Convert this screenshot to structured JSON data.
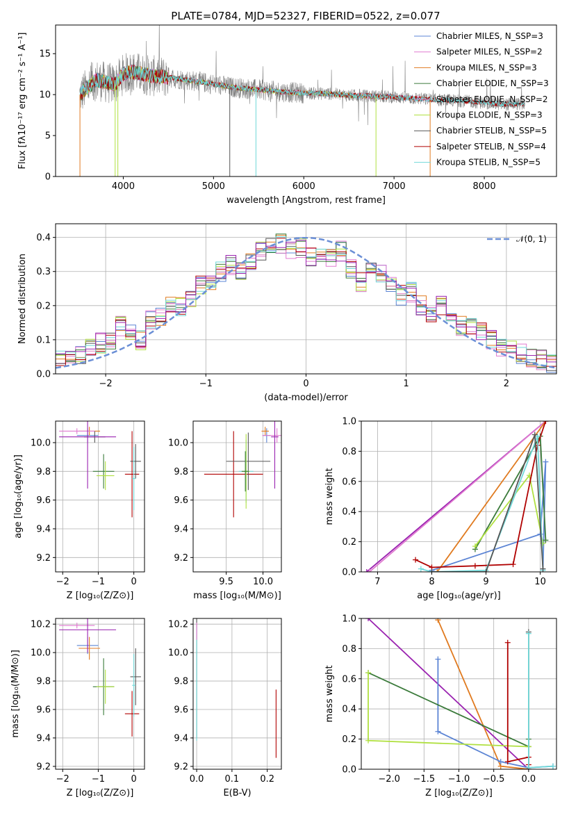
{
  "title": "PLATE=0784, MJD=52327, FIBERID=0522, z=0.077",
  "colors": {
    "chabrier_miles": "#5b84d4",
    "salpeter_miles": "#e07ad0",
    "kroupa_miles": "#e07a1f",
    "chabrier_elodie": "#3a7a3a",
    "salpeter_elodie": "#e080c0",
    "kroupa_elodie": "#b0e040",
    "chabrier_stelib": "#555555",
    "salpeter_stelib": "#b00000",
    "kroupa_stelib": "#70d8d8",
    "purple": "#9a22b0",
    "data": "#808080",
    "gauss": "#6b8fd6"
  },
  "chart_data": [
    {
      "type": "line",
      "panel": "spectrum",
      "xlabel": "wavelength [Angstrom, rest frame]",
      "ylabel": "Flux [fλ10⁻¹⁷ erg cm⁻² s⁻¹ A⁻¹]",
      "xlim": [
        3250,
        8800
      ],
      "ylim": [
        0,
        18.5
      ],
      "xticks": [
        "4000",
        "5000",
        "6000",
        "7000",
        "8000"
      ],
      "yticks": [
        "0",
        "5",
        "10",
        "15"
      ],
      "legend": [
        "Chabrier MILES, N_SSP=3",
        "Salpeter MILES, N_SSP=2",
        "Kroupa MILES, N_SSP=3",
        "Chabrier ELODIE, N_SSP=3",
        "Salpeter ELODIE, N_SSP=2",
        "Kroupa ELODIE, N_SSP=3",
        "Chabrier STELIB, N_SSP=5",
        "Salpeter STELIB, N_SSP=4",
        "Kroupa STELIB, N_SSP=5"
      ],
      "legend_placement": "upper-right",
      "continuum": [
        [
          3520,
          10.0
        ],
        [
          3700,
          11.8
        ],
        [
          3900,
          11.2
        ],
        [
          4000,
          12.5
        ],
        [
          4100,
          12.8
        ],
        [
          4300,
          12.3
        ],
        [
          4500,
          12.1
        ],
        [
          4700,
          11.8
        ],
        [
          5000,
          11.3
        ],
        [
          5200,
          10.9
        ],
        [
          5500,
          10.6
        ],
        [
          5800,
          10.3
        ],
        [
          6000,
          10.2
        ],
        [
          6300,
          10.1
        ],
        [
          6500,
          9.9
        ],
        [
          6800,
          9.8
        ],
        [
          7000,
          9.7
        ],
        [
          7400,
          9.4
        ],
        [
          7800,
          9.2
        ],
        [
          8200,
          8.8
        ],
        [
          8450,
          8.9
        ]
      ]
    },
    {
      "type": "bar",
      "panel": "residuals",
      "xlabel": "(data-model)/error",
      "ylabel": "Normed distribution",
      "xlim": [
        -2.5,
        2.5
      ],
      "ylim": [
        0,
        0.44
      ],
      "xticks": [
        "−2",
        "−1",
        "0",
        "1",
        "2"
      ],
      "yticks": [
        "0.0",
        "0.1",
        "0.2",
        "0.3",
        "0.4"
      ],
      "legend": [
        "𝒩(0, 1)"
      ],
      "histogram_centers": [
        -2.45,
        -2.35,
        -2.25,
        -2.15,
        -2.05,
        -1.95,
        -1.85,
        -1.75,
        -1.65,
        -1.55,
        -1.45,
        -1.35,
        -1.25,
        -1.15,
        -1.05,
        -0.95,
        -0.85,
        -0.75,
        -0.65,
        -0.55,
        -0.45,
        -0.35,
        -0.25,
        -0.15,
        -0.05,
        0.05,
        0.15,
        0.25,
        0.35,
        0.45,
        0.55,
        0.65,
        0.75,
        0.85,
        0.95,
        1.05,
        1.15,
        1.25,
        1.35,
        1.45,
        1.55,
        1.65,
        1.75,
        1.85,
        1.95,
        2.05,
        2.15,
        2.25,
        2.35,
        2.45
      ],
      "histogram_mean": [
        0.04,
        0.05,
        0.06,
        0.08,
        0.09,
        0.1,
        0.14,
        0.12,
        0.1,
        0.16,
        0.17,
        0.2,
        0.2,
        0.22,
        0.26,
        0.27,
        0.3,
        0.32,
        0.3,
        0.33,
        0.36,
        0.37,
        0.38,
        0.36,
        0.37,
        0.34,
        0.35,
        0.34,
        0.36,
        0.31,
        0.27,
        0.3,
        0.29,
        0.26,
        0.23,
        0.24,
        0.2,
        0.18,
        0.2,
        0.15,
        0.14,
        0.14,
        0.12,
        0.1,
        0.08,
        0.07,
        0.06,
        0.05,
        0.04,
        0.03
      ]
    },
    {
      "type": "scatter",
      "panel": "age-vs-Z",
      "xlabel": "Z [log₁₀(Z/Z⊙)]",
      "ylabel": "age  [log₁₀(age/yr)]",
      "xlim": [
        -2.2,
        0.3
      ],
      "ylim": [
        9.1,
        10.15
      ],
      "xticks": [
        "−2",
        "−1",
        "0"
      ],
      "yticks": [
        "9.2",
        "9.4",
        "9.6",
        "9.8",
        "10.0"
      ],
      "points": [
        {
          "x": -1.3,
          "y": 10.05,
          "ex": 0.3,
          "ey": 0.05,
          "c": "chabrier_miles"
        },
        {
          "x": -1.25,
          "y": 10.08,
          "ex": 0.3,
          "ey": 0.03,
          "c": "kroupa_miles"
        },
        {
          "x": -1.1,
          "y": 10.04,
          "ex": 0.3,
          "ey": 0.04,
          "c": "chabrier_stelib"
        },
        {
          "x": -1.6,
          "y": 10.08,
          "ex": 0.5,
          "ey": 0.02,
          "c": "salpeter_miles"
        },
        {
          "x": -1.3,
          "y": 10.04,
          "ex": 0.8,
          "ey": 0.36,
          "c": "purple"
        },
        {
          "x": -0.85,
          "y": 9.8,
          "ex": 0.3,
          "ey": 0.12,
          "c": "chabrier_elodie"
        },
        {
          "x": -0.8,
          "y": 9.77,
          "ex": 0.25,
          "ey": 0.1,
          "c": "kroupa_elodie"
        },
        {
          "x": -0.05,
          "y": 9.78,
          "ex": 0.2,
          "ey": 0.3,
          "c": "salpeter_stelib"
        },
        {
          "x": 0.05,
          "y": 9.87,
          "ex": 0.15,
          "ey": 0.12,
          "c": "chabrier_stelib"
        },
        {
          "x": 0.0,
          "y": 9.75,
          "ex": 0.05,
          "ey": 0.22,
          "c": "kroupa_stelib"
        }
      ]
    },
    {
      "type": "scatter",
      "panel": "age-vs-mass",
      "xlabel": "mass [log₁₀(M/M⊙)]",
      "ylabel": "",
      "xlim": [
        9.05,
        10.25
      ],
      "ylim": [
        9.1,
        10.15
      ],
      "xticks": [
        "9.5",
        "10.0"
      ],
      "yticks": [
        "9.2",
        "9.4",
        "9.6",
        "9.8",
        "10.0"
      ],
      "points": [
        {
          "x": 9.6,
          "y": 9.78,
          "ex": 0.4,
          "ey": 0.3,
          "c": "salpeter_stelib"
        },
        {
          "x": 9.8,
          "y": 9.87,
          "ex": 0.3,
          "ey": 0.2,
          "c": "chabrier_stelib"
        },
        {
          "x": 9.77,
          "y": 9.8,
          "ex": 0.1,
          "ey": 0.22,
          "c": "kroupa_stelib"
        },
        {
          "x": 9.77,
          "y": 9.8,
          "ex": 0.05,
          "ey": 0.26,
          "c": "kroupa_elodie"
        },
        {
          "x": 9.76,
          "y": 9.8,
          "ex": 0.05,
          "ey": 0.14,
          "c": "chabrier_elodie"
        },
        {
          "x": 10.05,
          "y": 10.05,
          "ex": 0.05,
          "ey": 0.05,
          "c": "chabrier_miles"
        },
        {
          "x": 10.03,
          "y": 10.08,
          "ex": 0.05,
          "ey": 0.03,
          "c": "kroupa_miles"
        },
        {
          "x": 10.19,
          "y": 10.05,
          "ex": 0.2,
          "ey": 0.05,
          "c": "salpeter_miles"
        },
        {
          "x": 10.16,
          "y": 10.04,
          "ex": 0.05,
          "ey": 0.36,
          "c": "purple"
        }
      ]
    },
    {
      "type": "line",
      "panel": "mass-weight-vs-age",
      "xlabel": "age  [log₁₀(age/yr)]",
      "ylabel": "mass weight",
      "xlim": [
        6.7,
        10.3
      ],
      "ylim": [
        0,
        1
      ],
      "xticks": [
        "7",
        "8",
        "9",
        "10"
      ],
      "yticks": [
        "0.0",
        "0.2",
        "0.4",
        "0.6",
        "0.8",
        "1.0"
      ],
      "series": [
        {
          "c": "purple",
          "x": [
            6.8,
            10.1
          ],
          "y": [
            0.0,
            1.0
          ]
        },
        {
          "c": "salpeter_miles",
          "x": [
            6.85,
            10.1
          ],
          "y": [
            0.0,
            1.0
          ]
        },
        {
          "c": "kroupa_miles",
          "x": [
            8.1,
            10.1
          ],
          "y": [
            0.0,
            1.0
          ]
        },
        {
          "c": "chabrier_miles",
          "x": [
            8.0,
            10.0,
            10.1,
            10.05
          ],
          "y": [
            0.01,
            0.25,
            0.73,
            0.02
          ]
        },
        {
          "c": "chabrier_elodie",
          "x": [
            8.8,
            10.0,
            10.1
          ],
          "y": [
            0.15,
            0.9,
            0.21
          ]
        },
        {
          "c": "kroupa_elodie",
          "x": [
            8.8,
            9.8,
            10.05
          ],
          "y": [
            0.17,
            0.64,
            0.19
          ]
        },
        {
          "c": "salpeter_stelib",
          "x": [
            7.7,
            8.0,
            8.8,
            9.5,
            9.95,
            10.1
          ],
          "y": [
            0.08,
            0.03,
            0.04,
            0.05,
            0.84,
            1.0
          ]
        },
        {
          "c": "kroupa_stelib",
          "x": [
            7.8,
            8.0,
            9.0,
            9.95,
            10.05
          ],
          "y": [
            0.02,
            0.0,
            0.01,
            0.9,
            0.01
          ]
        },
        {
          "c": "chabrier_stelib",
          "x": [
            8.0,
            9.0,
            9.9,
            10.05
          ],
          "y": [
            0.0,
            0.0,
            0.91,
            0.02
          ]
        }
      ]
    },
    {
      "type": "scatter",
      "panel": "mass-vs-Z",
      "xlabel": "Z [log₁₀(Z/Z⊙)]",
      "ylabel": "mass [log₁₀(M/M⊙)]",
      "xlim": [
        -2.2,
        0.3
      ],
      "ylim": [
        9.18,
        10.24
      ],
      "xticks": [
        "−2",
        "−1",
        "0"
      ],
      "yticks": [
        "9.2",
        "9.4",
        "9.6",
        "9.8",
        "10.0",
        "10.2"
      ],
      "points": [
        {
          "x": -1.3,
          "y": 10.05,
          "ex": 0.3,
          "ey": 0.06,
          "c": "chabrier_miles"
        },
        {
          "x": -1.25,
          "y": 10.03,
          "ex": 0.3,
          "ey": 0.08,
          "c": "kroupa_miles"
        },
        {
          "x": -1.6,
          "y": 10.19,
          "ex": 0.5,
          "ey": 0.02,
          "c": "salpeter_miles"
        },
        {
          "x": -1.3,
          "y": 10.16,
          "ex": 0.8,
          "ey": 0.16,
          "c": "purple"
        },
        {
          "x": -0.85,
          "y": 9.76,
          "ex": 0.3,
          "ey": 0.2,
          "c": "chabrier_elodie"
        },
        {
          "x": -0.8,
          "y": 9.76,
          "ex": 0.25,
          "ey": 0.12,
          "c": "kroupa_elodie"
        },
        {
          "x": -0.05,
          "y": 9.57,
          "ex": 0.2,
          "ey": 0.16,
          "c": "salpeter_stelib"
        },
        {
          "x": 0.05,
          "y": 9.83,
          "ex": 0.15,
          "ey": 0.2,
          "c": "chabrier_stelib"
        },
        {
          "x": 0.0,
          "y": 9.77,
          "ex": 0.05,
          "ey": 0.22,
          "c": "kroupa_stelib"
        }
      ]
    },
    {
      "type": "scatter",
      "panel": "mass-vs-EBV",
      "xlabel": "E(B-V)",
      "ylabel": "",
      "xlim": [
        -0.01,
        0.24
      ],
      "ylim": [
        9.18,
        10.24
      ],
      "xticks": [
        "0.0",
        "0.1",
        "0.2"
      ],
      "yticks": [
        "9.2",
        "9.4",
        "9.6",
        "9.8",
        "10.0",
        "10.2"
      ],
      "points": [
        {
          "x": 0.0,
          "y": 9.85,
          "ex": 0.0,
          "ey": 0.45,
          "c": "chabrier_stelib"
        },
        {
          "x": 0.0,
          "y": 9.78,
          "ex": 0.0,
          "ey": 0.4,
          "c": "kroupa_stelib"
        },
        {
          "x": 0.0,
          "y": 10.15,
          "ex": 0.0,
          "ey": 0.06,
          "c": "salpeter_miles"
        },
        {
          "x": 0.225,
          "y": 9.5,
          "ex": 0.0,
          "ey": 0.24,
          "c": "salpeter_stelib"
        }
      ]
    },
    {
      "type": "line",
      "panel": "mass-weight-vs-Z",
      "xlabel": "Z [log₁₀(Z/Z⊙)]",
      "ylabel": "mass weight",
      "xlim": [
        -2.4,
        0.4
      ],
      "ylim": [
        0,
        1
      ],
      "xticks": [
        "−2.0",
        "−1.5",
        "−1.0",
        "−0.5",
        "0.0"
      ],
      "yticks": [
        "0.0",
        "0.2",
        "0.4",
        "0.6",
        "0.8",
        "1.0"
      ],
      "series": [
        {
          "c": "purple",
          "x": [
            -2.3,
            0.0
          ],
          "y": [
            1.0,
            0.0
          ]
        },
        {
          "c": "kroupa_miles",
          "x": [
            -1.3,
            -0.4,
            0.0
          ],
          "y": [
            0.99,
            0.02,
            0.0
          ]
        },
        {
          "c": "chabrier_miles",
          "x": [
            -1.3,
            -1.3,
            -0.4,
            0.0,
            0.35
          ],
          "y": [
            0.73,
            0.25,
            0.05,
            0.01,
            0.02
          ]
        },
        {
          "c": "chabrier_elodie",
          "x": [
            -2.3,
            0.0,
            0.0
          ],
          "y": [
            0.64,
            0.15,
            0.2
          ]
        },
        {
          "c": "kroupa_elodie",
          "x": [
            -2.3,
            -2.3,
            0.0
          ],
          "y": [
            0.64,
            0.19,
            0.15
          ]
        },
        {
          "c": "salpeter_stelib",
          "x": [
            -0.3,
            -0.3,
            0.0,
            0.0
          ],
          "y": [
            0.84,
            0.05,
            0.08,
            0.03
          ]
        },
        {
          "c": "chabrier_stelib",
          "x": [
            0.0,
            0.0
          ],
          "y": [
            0.91,
            0.0
          ]
        },
        {
          "c": "kroupa_stelib",
          "x": [
            0.0,
            0.0,
            0.35
          ],
          "y": [
            0.9,
            0.01,
            0.02
          ]
        }
      ]
    }
  ]
}
